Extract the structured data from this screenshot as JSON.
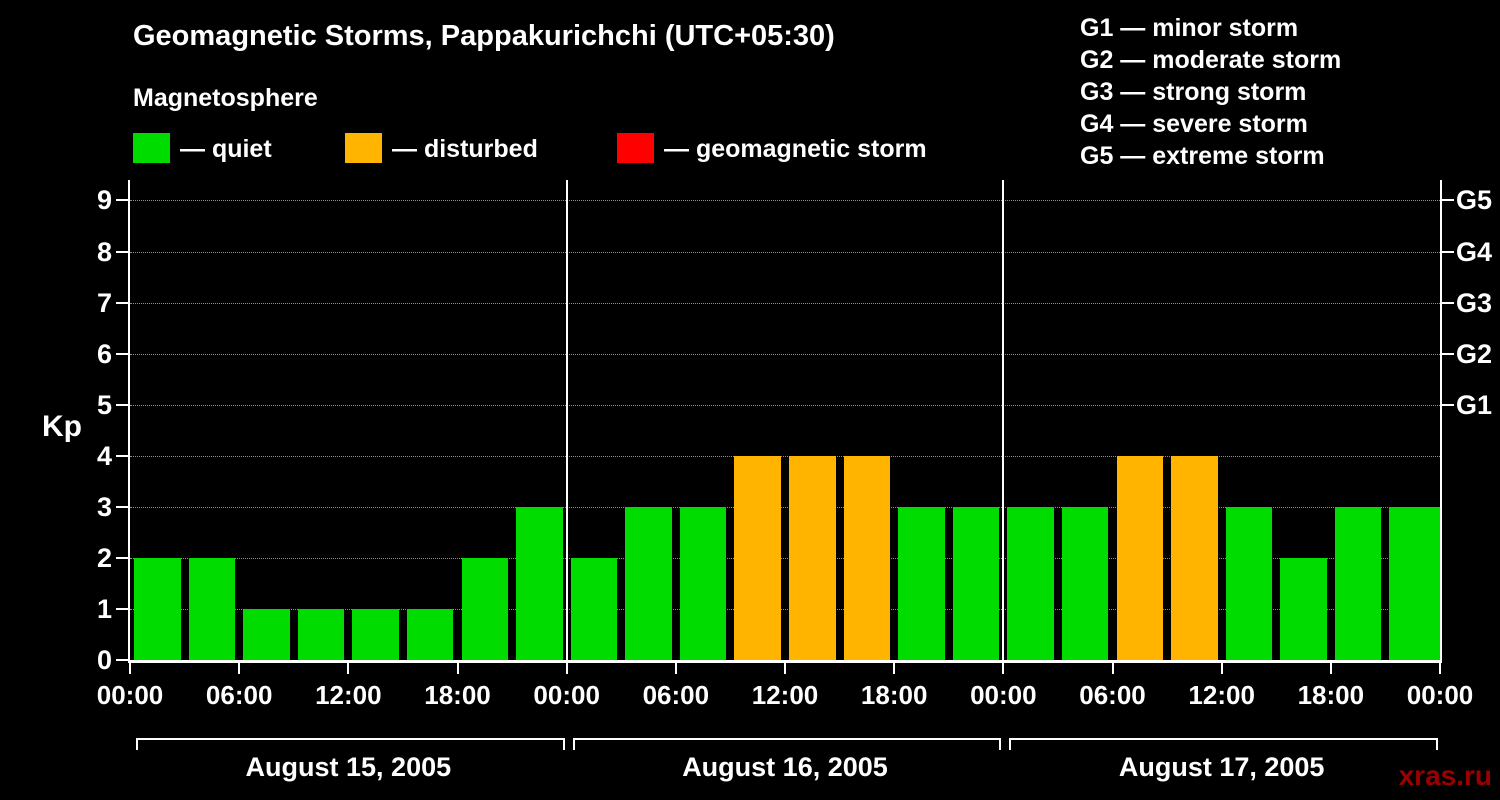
{
  "header": {
    "title": "Geomagnetic Storms, Pappakurichchi (UTC+05:30)",
    "subtitle": "Magnetosphere"
  },
  "legend": {
    "items": [
      {
        "name": "quiet",
        "label": "— quiet",
        "color": "#00dc00"
      },
      {
        "name": "disturbed",
        "label": "— disturbed",
        "color": "#ffb400"
      },
      {
        "name": "storm",
        "label": "— geomagnetic storm",
        "color": "#ff0000"
      }
    ]
  },
  "g_scale": {
    "items": [
      "G1 — minor storm",
      "G2 — moderate storm",
      "G3 — strong storm",
      "G4 — severe storm",
      "G5 — extreme storm"
    ]
  },
  "watermark": "xras.ru",
  "chart_data": {
    "type": "bar",
    "title": "Geomagnetic Storms, Pappakurichchi (UTC+05:30)",
    "ylabel": "Kp",
    "xlabel": "",
    "ylim": [
      0,
      9.4
    ],
    "yticks": [
      0,
      1,
      2,
      3,
      4,
      5,
      6,
      7,
      8,
      9
    ],
    "grid": "dotted horizontal gridlines at each Kp level",
    "legend_position": "top",
    "bar_interval_hours": 3,
    "right_axis": [
      {
        "label": "G1",
        "kp": 5
      },
      {
        "label": "G2",
        "kp": 6
      },
      {
        "label": "G3",
        "kp": 7
      },
      {
        "label": "G4",
        "kp": 8
      },
      {
        "label": "G5",
        "kp": 9
      }
    ],
    "x_tick_labels": [
      "00:00",
      "06:00",
      "12:00",
      "18:00",
      "00:00",
      "06:00",
      "12:00",
      "18:00",
      "00:00",
      "06:00",
      "12:00",
      "18:00",
      "00:00"
    ],
    "days": [
      {
        "date": "August 15, 2005",
        "kp_values": [
          2,
          2,
          1,
          1,
          1,
          1,
          2,
          3
        ]
      },
      {
        "date": "August 16, 2005",
        "kp_values": [
          2,
          3,
          3,
          4,
          4,
          4,
          3,
          3
        ]
      },
      {
        "date": "August 17, 2005",
        "kp_values": [
          3,
          3,
          4,
          4,
          3,
          2,
          3,
          3
        ]
      }
    ],
    "trailing_partial_bar_kp": 3,
    "color_thresholds": {
      "quiet_max_kp": 3,
      "disturbed_max_kp": 4
    },
    "colors": {
      "quiet": "#00dc00",
      "disturbed": "#ffb400",
      "storm": "#ff0000"
    }
  }
}
